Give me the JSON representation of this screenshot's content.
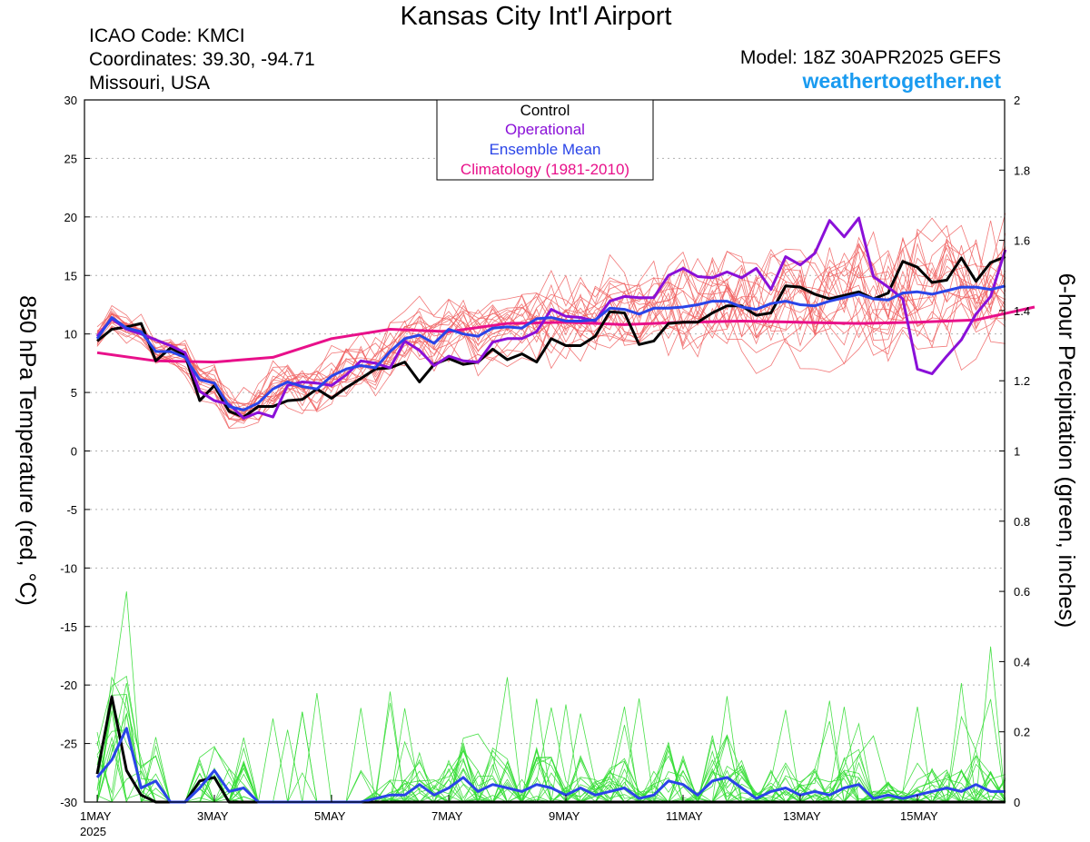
{
  "header": {
    "title": "Kansas City Int'l Airport",
    "icao": "ICAO Code: KMCI",
    "coordinates": "Coordinates: 39.30, -94.71",
    "region": "Missouri, USA",
    "model": "Model: 18Z 30APR2025 GEFS",
    "site": "weathertogether.net"
  },
  "chart_data": {
    "type": "line",
    "ylabel_left": "850 hPa Temperature (red, °C)",
    "ylabel_right": "6-hour Precipitation (green, inches)",
    "xlim": [
      0,
      16
    ],
    "ylim_left": [
      -30,
      30
    ],
    "ylim_right": [
      0,
      2
    ],
    "grid": "horizontal dotted",
    "legend_position": "top-center",
    "x_ticks": [
      {
        "x": 0,
        "label": "1MAY",
        "sublabel": "2025"
      },
      {
        "x": 2,
        "label": "3MAY"
      },
      {
        "x": 4,
        "label": "5MAY"
      },
      {
        "x": 6,
        "label": "7MAY"
      },
      {
        "x": 8,
        "label": "9MAY"
      },
      {
        "x": 10,
        "label": "11MAY"
      },
      {
        "x": 12,
        "label": "13MAY"
      },
      {
        "x": 14,
        "label": "15MAY"
      }
    ],
    "y_ticks_left": [
      30,
      25,
      20,
      15,
      10,
      5,
      0,
      -5,
      -10,
      -15,
      -20,
      -25,
      -30
    ],
    "y_ticks_right": [
      "2",
      "1.8",
      "1.6",
      "1.4",
      "1.2",
      "1",
      "0.8",
      "0.6",
      "0.4",
      "0.2",
      "0"
    ],
    "legend": [
      {
        "label": "Control",
        "color": "#000000"
      },
      {
        "label": "Operational",
        "color": "#8a10d8"
      },
      {
        "label": "Ensemble Mean",
        "color": "#2a44e8"
      },
      {
        "label": "Climatology (1981-2010)",
        "color": "#e8108a"
      }
    ],
    "colors": {
      "control": "#000000",
      "operational": "#8a10d8",
      "ensemble_mean": "#2a44e8",
      "climatology": "#e8108a",
      "members_temp": "#f06060",
      "members_precip": "#33dd33"
    },
    "series": [
      {
        "id": "climatology",
        "axis": "left",
        "x_step": 1,
        "values": [
          8.4,
          7.7,
          7.6,
          8.0,
          9.6,
          10.4,
          10.2,
          10.9,
          11.0,
          10.8,
          11.0,
          11.1,
          11.0,
          10.9,
          11.0,
          11.2,
          12.3
        ]
      },
      {
        "id": "control",
        "axis": "left",
        "x_step": 0.25,
        "values": [
          9.4,
          10.4,
          10.6,
          10.9,
          7.7,
          8.8,
          8.2,
          4.3,
          5.6,
          3.4,
          2.9,
          3.8,
          3.8,
          4.3,
          4.4,
          5.3,
          4.5,
          5.4,
          6.2,
          7.0,
          7.1,
          7.6,
          5.9,
          7.4,
          7.9,
          7.4,
          7.6,
          8.7,
          7.8,
          8.3,
          7.6,
          9.6,
          9.0,
          9.0,
          9.8,
          11.9,
          11.8,
          9.1,
          9.4,
          10.9,
          11.0,
          11.0,
          11.8,
          12.4,
          12.4,
          11.6,
          11.8,
          14.1,
          14.0,
          13.4,
          13.0,
          13.3,
          13.6,
          13.0,
          13.5,
          16.2,
          15.7,
          14.4,
          14.6,
          16.5,
          14.5,
          16.1,
          16.6
        ]
      },
      {
        "id": "operational",
        "axis": "left",
        "x_step": 0.25,
        "values": [
          9.8,
          11.3,
          10.4,
          10.0,
          9.5,
          9.0,
          8.4,
          5.1,
          4.3,
          4.0,
          2.8,
          3.3,
          2.9,
          5.6,
          5.9,
          5.8,
          5.6,
          6.5,
          7.7,
          7.5,
          7.1,
          9.4,
          8.6,
          7.3,
          8.1,
          7.7,
          7.6,
          9.3,
          9.6,
          9.6,
          10.2,
          12.1,
          11.5,
          11.4,
          11.1,
          12.8,
          13.2,
          13.1,
          13.1,
          15.0,
          15.6,
          14.9,
          14.8,
          15.3,
          14.8,
          15.6,
          13.8,
          16.6,
          15.9,
          16.9,
          19.7,
          18.3,
          19.9,
          14.9,
          14.0,
          13.0,
          7.0,
          6.6,
          8.1,
          9.5,
          11.7,
          13.2,
          17.2
        ]
      },
      {
        "id": "ensemble_mean",
        "axis": "left",
        "x_step": 0.25,
        "values": [
          9.6,
          11.4,
          10.5,
          10.2,
          8.5,
          8.5,
          8.0,
          6.1,
          5.8,
          3.8,
          3.5,
          4.1,
          5.3,
          5.9,
          5.5,
          5.3,
          6.4,
          7.0,
          7.3,
          7.1,
          8.5,
          9.6,
          9.9,
          9.2,
          10.4,
          10.0,
          9.8,
          10.5,
          10.6,
          10.5,
          11.3,
          11.4,
          11.1,
          11.1,
          11.2,
          12.2,
          12.1,
          11.7,
          12.2,
          12.2,
          12.3,
          12.5,
          12.8,
          12.8,
          12.3,
          12.1,
          12.6,
          12.8,
          12.5,
          12.4,
          12.8,
          13.1,
          13.4,
          13.0,
          12.9,
          13.5,
          13.6,
          13.4,
          13.7,
          14.0,
          14.0,
          13.8,
          14.1
        ]
      },
      {
        "id": "control_precip",
        "axis": "right",
        "x_step": 0.25,
        "values": [
          0.08,
          0.3,
          0.09,
          0.02,
          0.0,
          0.0,
          0.0,
          0.06,
          0.07,
          0.0,
          0.0,
          0.0,
          0.0,
          0.0,
          0.0,
          0.0,
          0.0,
          0.0,
          0.0,
          0.0,
          0.0,
          0.0,
          0.0,
          0.0,
          0.0,
          0.0,
          0.0,
          0.0,
          0.0,
          0.0,
          0.0,
          0.0,
          0.0,
          0.0,
          0.0,
          0.0,
          0.0,
          0.0,
          0.0,
          0.0,
          0.0,
          0.0,
          0.0,
          0.0,
          0.0,
          0.0,
          0.0,
          0.0,
          0.0,
          0.0,
          0.0,
          0.0,
          0.0,
          0.0,
          0.0,
          0.0,
          0.0,
          0.0,
          0.0,
          0.0,
          0.0,
          0.0,
          0.0
        ]
      },
      {
        "id": "mean_precip",
        "axis": "right",
        "x_step": 0.25,
        "values": [
          0.07,
          0.12,
          0.21,
          0.04,
          0.06,
          0.0,
          0.0,
          0.04,
          0.09,
          0.03,
          0.04,
          0.0,
          0.0,
          0.0,
          0.0,
          0.0,
          0.0,
          0.0,
          0.0,
          0.01,
          0.02,
          0.02,
          0.05,
          0.02,
          0.04,
          0.07,
          0.03,
          0.05,
          0.04,
          0.03,
          0.05,
          0.04,
          0.02,
          0.04,
          0.02,
          0.03,
          0.04,
          0.01,
          0.02,
          0.06,
          0.05,
          0.02,
          0.06,
          0.07,
          0.04,
          0.01,
          0.03,
          0.04,
          0.02,
          0.03,
          0.02,
          0.04,
          0.05,
          0.01,
          0.02,
          0.01,
          0.02,
          0.03,
          0.04,
          0.03,
          0.05,
          0.03,
          0.03
        ]
      }
    ]
  }
}
